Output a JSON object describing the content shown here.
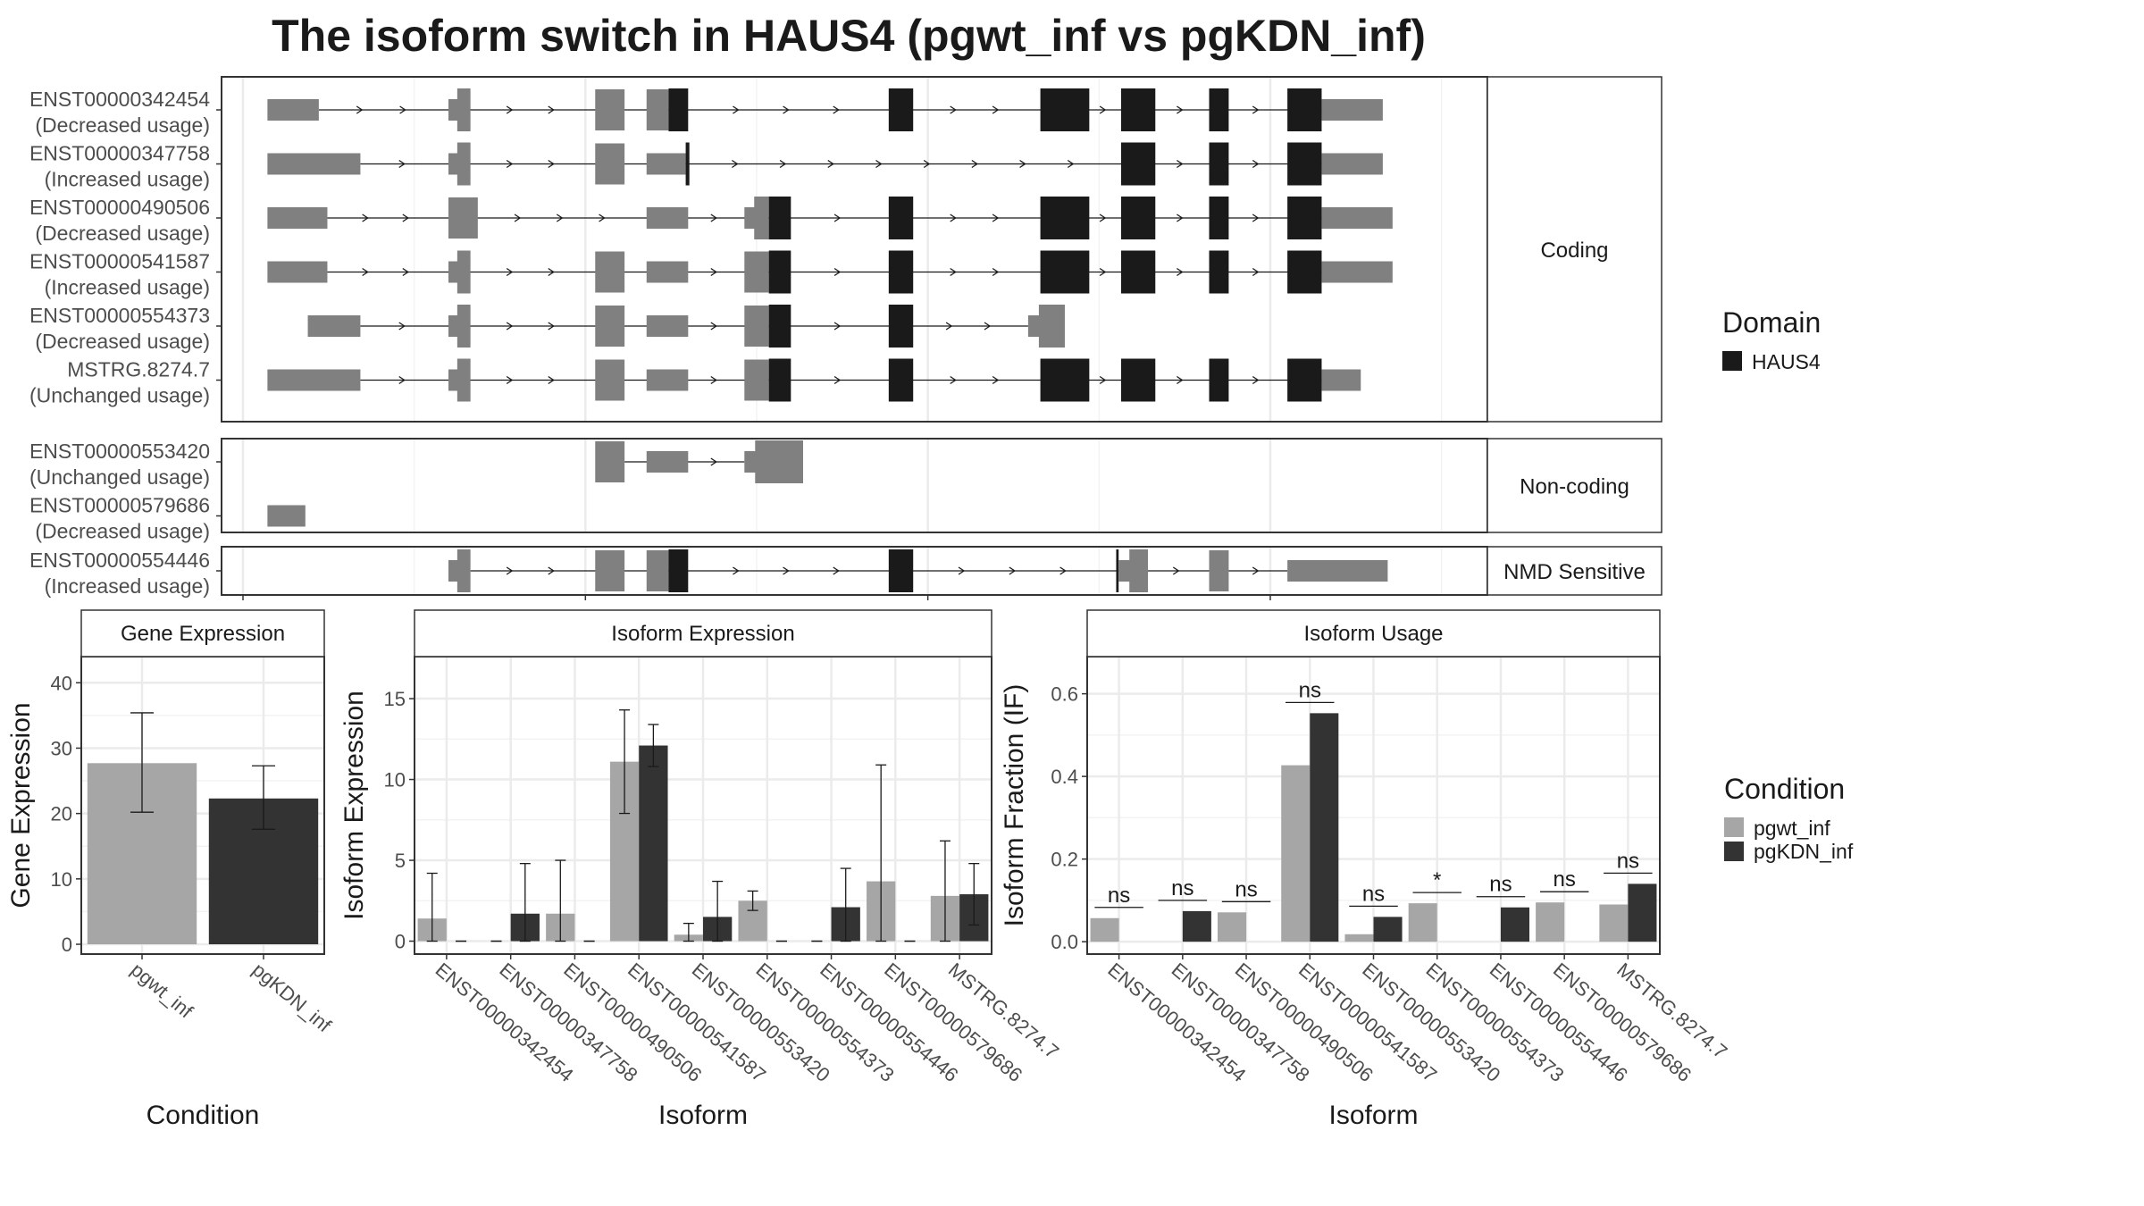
{
  "title": "The isoform switch in HAUS4 (pgwt_inf vs pgKDN_inf)",
  "colors": {
    "domain": "#1a1a1a",
    "exon": "#808080",
    "pgwt_inf": "#a6a6a6",
    "pgKDN_inf": "#333333",
    "grid": "#ebebeb",
    "strip_bg": "#ffffff",
    "panel_border": "#333333"
  },
  "structure": {
    "x_range": [
      0,
      1000
    ],
    "sections": [
      {
        "label": "Coding",
        "isoforms": [
          {
            "id": "ENST00000342454",
            "usage": "(Decreased usage)",
            "exons": [
              [
                20,
                62,
                "u"
              ],
              [
                168,
                186,
                "u5"
              ],
              [
                288,
                312,
                "u"
              ],
              [
                330,
                348,
                "u"
              ],
              [
                348,
                364,
                "d"
              ],
              [
                528,
                548,
                "d"
              ],
              [
                652,
                692,
                "d"
              ],
              [
                718,
                746,
                "d"
              ],
              [
                790,
                806,
                "d"
              ],
              [
                854,
                882,
                "d"
              ],
              [
                882,
                932,
                "u"
              ]
            ],
            "arrow_dir": 1
          },
          {
            "id": "ENST00000347758",
            "usage": "(Increased usage)",
            "exons": [
              [
                20,
                96,
                "u"
              ],
              [
                168,
                186,
                "u5"
              ],
              [
                288,
                312,
                "u"
              ],
              [
                330,
                362,
                "u"
              ],
              [
                362,
                365,
                "d"
              ],
              [
                718,
                746,
                "d"
              ],
              [
                790,
                806,
                "d"
              ],
              [
                854,
                882,
                "d"
              ],
              [
                882,
                932,
                "u"
              ]
            ],
            "arrow_dir": 1
          },
          {
            "id": "ENST00000490506",
            "usage": "(Decreased usage)",
            "exons": [
              [
                20,
                69,
                "u"
              ],
              [
                168,
                192,
                "u"
              ],
              [
                330,
                364,
                "u"
              ],
              [
                410,
                430,
                "u5"
              ],
              [
                430,
                448,
                "d"
              ],
              [
                528,
                548,
                "d"
              ],
              [
                652,
                692,
                "d"
              ],
              [
                718,
                746,
                "d"
              ],
              [
                790,
                806,
                "d"
              ],
              [
                854,
                882,
                "d"
              ],
              [
                882,
                940,
                "u"
              ]
            ],
            "arrow_dir": 1
          },
          {
            "id": "ENST00000541587",
            "usage": "(Increased usage)",
            "exons": [
              [
                20,
                69,
                "u"
              ],
              [
                168,
                186,
                "u5"
              ],
              [
                288,
                312,
                "u"
              ],
              [
                330,
                364,
                "u"
              ],
              [
                410,
                430,
                "u"
              ],
              [
                430,
                448,
                "d"
              ],
              [
                528,
                548,
                "d"
              ],
              [
                652,
                692,
                "d"
              ],
              [
                718,
                746,
                "d"
              ],
              [
                790,
                806,
                "d"
              ],
              [
                854,
                882,
                "d"
              ],
              [
                882,
                940,
                "u"
              ]
            ],
            "arrow_dir": 1
          },
          {
            "id": "ENST00000554373",
            "usage": "(Decreased usage)",
            "exons": [
              [
                53,
                96,
                "u"
              ],
              [
                168,
                186,
                "u5"
              ],
              [
                288,
                312,
                "u"
              ],
              [
                330,
                364,
                "u"
              ],
              [
                410,
                430,
                "u"
              ],
              [
                430,
                448,
                "d"
              ],
              [
                528,
                548,
                "d"
              ],
              [
                642,
                672,
                "u5"
              ]
            ],
            "arrow_dir": 1
          },
          {
            "id": "MSTRG.8274.7",
            "usage": "(Unchanged usage)",
            "exons": [
              [
                20,
                96,
                "u"
              ],
              [
                168,
                186,
                "u5"
              ],
              [
                288,
                312,
                "u"
              ],
              [
                330,
                364,
                "u"
              ],
              [
                410,
                430,
                "u"
              ],
              [
                430,
                448,
                "d"
              ],
              [
                528,
                548,
                "d"
              ],
              [
                652,
                692,
                "d"
              ],
              [
                718,
                746,
                "d"
              ],
              [
                790,
                806,
                "d"
              ],
              [
                854,
                882,
                "d"
              ],
              [
                882,
                914,
                "u"
              ]
            ],
            "arrow_dir": 1
          }
        ]
      },
      {
        "label": "Non-coding",
        "isoforms": [
          {
            "id": "ENST00000553420",
            "usage": "(Unchanged usage)",
            "exons": [
              [
                288,
                312,
                "u"
              ],
              [
                330,
                364,
                "u"
              ],
              [
                410,
                458,
                "u5"
              ]
            ],
            "arrow_dir": 1
          },
          {
            "id": "ENST00000579686",
            "usage": "(Decreased usage)",
            "exons": [
              [
                20,
                51,
                "u"
              ]
            ],
            "arrow_dir": 0
          }
        ]
      },
      {
        "label": "NMD Sensitive",
        "isoforms": [
          {
            "id": "ENST00000554446",
            "usage": "(Increased usage)",
            "exons": [
              [
                168,
                186,
                "u5"
              ],
              [
                288,
                312,
                "u"
              ],
              [
                330,
                348,
                "u"
              ],
              [
                348,
                364,
                "d"
              ],
              [
                528,
                548,
                "d"
              ],
              [
                714,
                716,
                "d"
              ],
              [
                716,
                740,
                "u5"
              ],
              [
                790,
                806,
                "u"
              ],
              [
                854,
                936,
                "u"
              ]
            ],
            "arrow_dir": 1
          }
        ]
      }
    ]
  },
  "legend_domain": {
    "title": "Domain",
    "entries": [
      {
        "label": "HAUS4",
        "color": "#1a1a1a"
      }
    ]
  },
  "legend_condition": {
    "title": "Condition",
    "entries": [
      {
        "label": "pgwt_inf",
        "color": "#a6a6a6"
      },
      {
        "label": "pgKDN_inf",
        "color": "#333333"
      }
    ]
  },
  "chart_data": [
    {
      "type": "bar",
      "title": "Gene Expression",
      "xlabel": "Condition",
      "ylabel": "Gene Expression",
      "ylim": [
        -1.5,
        44
      ],
      "yticks": [
        0,
        10,
        20,
        30,
        40
      ],
      "categories": [
        "pgwt_inf",
        "pgKDN_inf"
      ],
      "series": [
        {
          "name": "pgwt_inf",
          "values": [
            27.7,
            null
          ],
          "err_low": [
            20.2,
            null
          ],
          "err_high": [
            35.4,
            null
          ]
        },
        {
          "name": "pgKDN_inf",
          "values": [
            null,
            22.3
          ],
          "err_low": [
            null,
            17.6
          ],
          "err_high": [
            null,
            27.3
          ]
        }
      ]
    },
    {
      "type": "bar",
      "title": "Isoform Expression",
      "xlabel": "Isoform",
      "ylabel": "Isoform Expression",
      "ylim": [
        -0.8,
        17.6
      ],
      "yticks": [
        0,
        5,
        10,
        15
      ],
      "categories": [
        "ENST00000342454",
        "ENST00000347758",
        "ENST00000490506",
        "ENST00000541587",
        "ENST00000553420",
        "ENST00000554373",
        "ENST00000554446",
        "ENST00000579686",
        "MSTRG.8274.7"
      ],
      "series": [
        {
          "name": "pgwt_inf",
          "values": [
            1.4,
            0,
            1.7,
            11.1,
            0.4,
            2.5,
            0,
            3.7,
            2.8
          ],
          "err_low": [
            0,
            0,
            0,
            7.9,
            0,
            1.9,
            0,
            0,
            0
          ],
          "err_high": [
            4.2,
            0,
            5.0,
            14.3,
            1.1,
            3.1,
            0,
            10.9,
            6.2
          ]
        },
        {
          "name": "pgKDN_inf",
          "values": [
            0,
            1.7,
            0,
            12.1,
            1.5,
            0,
            2.1,
            0,
            2.9
          ],
          "err_low": [
            0,
            0,
            0,
            10.8,
            0,
            0,
            0,
            0,
            1.0
          ],
          "err_high": [
            0,
            4.8,
            0,
            13.4,
            3.7,
            0,
            4.5,
            0,
            4.8
          ]
        }
      ]
    },
    {
      "type": "bar",
      "title": "Isoform Usage",
      "xlabel": "Isoform",
      "ylabel": "Isoform Fraction (IF)",
      "ylim": [
        -0.03,
        0.69
      ],
      "yticks": [
        0.0,
        0.2,
        0.4,
        0.6
      ],
      "categories": [
        "ENST00000342454",
        "ENST00000347758",
        "ENST00000490506",
        "ENST00000541587",
        "ENST00000553420",
        "ENST00000554373",
        "ENST00000554446",
        "ENST00000579686",
        "MSTRG.8274.7"
      ],
      "series": [
        {
          "name": "pgwt_inf",
          "values": [
            0.057,
            0,
            0.071,
            0.427,
            0.018,
            0.093,
            0,
            0.095,
            0.09
          ]
        },
        {
          "name": "pgKDN_inf",
          "values": [
            0,
            0.074,
            0,
            0.553,
            0.06,
            0,
            0.083,
            0,
            0.14
          ]
        }
      ],
      "significance": [
        "ns",
        "ns",
        "ns",
        "ns",
        "ns",
        "*",
        "ns",
        "ns",
        "ns"
      ]
    }
  ]
}
